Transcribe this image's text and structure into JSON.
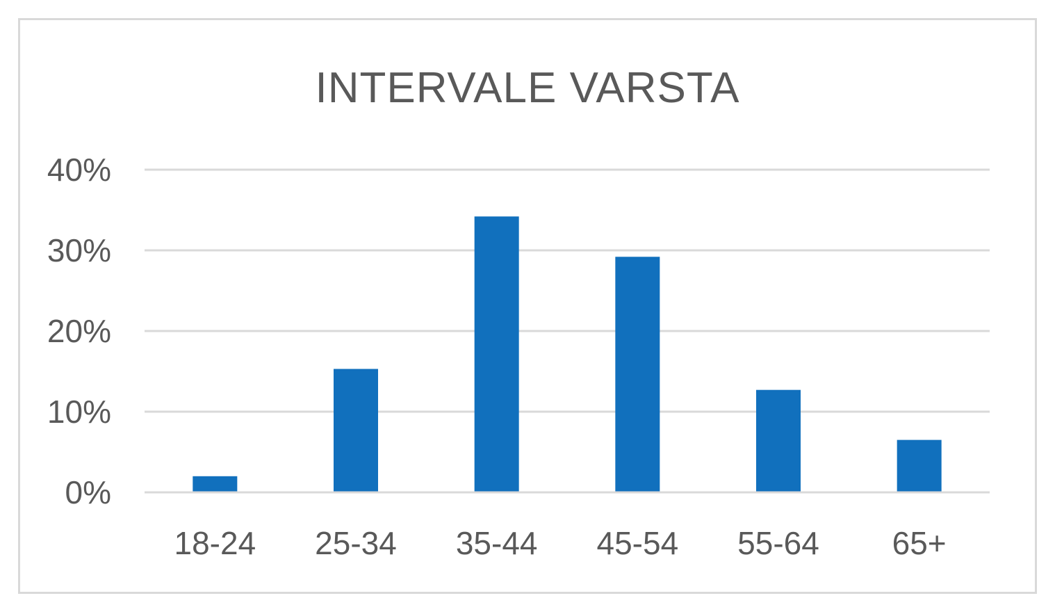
{
  "chart_data": {
    "type": "bar",
    "title": "INTERVALE VARSTA",
    "xlabel": "",
    "ylabel": "",
    "categories": [
      "18-24",
      "25-34",
      "35-44",
      "45-54",
      "55-64",
      "65+"
    ],
    "values": [
      2,
      15.3,
      34.2,
      29.2,
      12.7,
      6.5
    ],
    "unit": "%",
    "ylim": [
      0,
      40
    ],
    "yticks": [
      0,
      10,
      20,
      30,
      40
    ],
    "ytick_labels": [
      "0%",
      "10%",
      "20%",
      "30%",
      "40%"
    ],
    "grid": true,
    "legend": "none",
    "bar_color": "#1170bd",
    "grid_color": "#d9d9d9",
    "text_color": "#595959"
  }
}
